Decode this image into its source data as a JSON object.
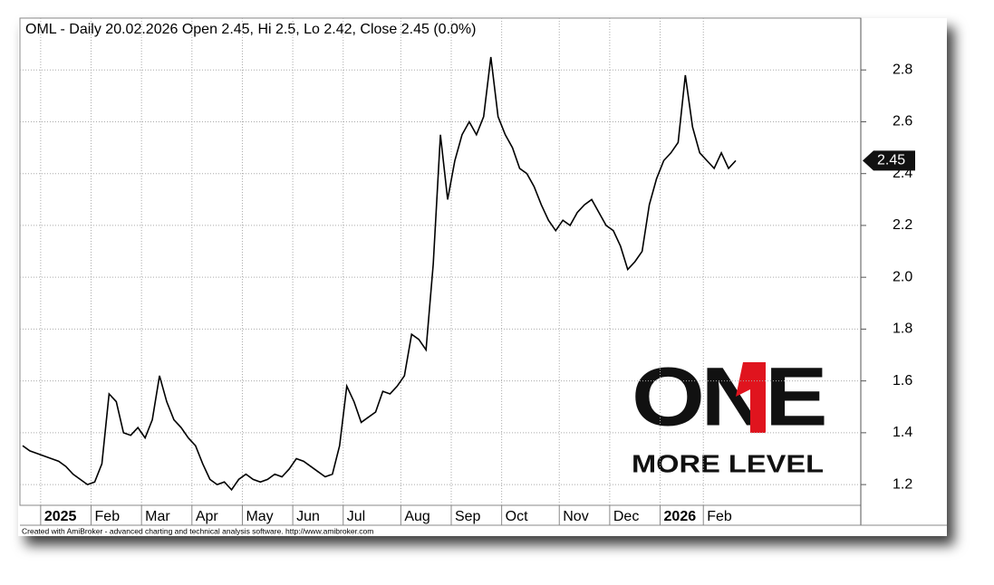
{
  "chart_data": {
    "type": "line",
    "title": "OML - Daily 20.02.2026 Open 2.45, Hi 2.5, Lo 2.42, Close 2.45 (0.0%)",
    "footer": "Created with AmiBroker - advanced charting and technical analysis software. http://www.amibroker.com",
    "logo": {
      "top": "ONE",
      "bottom": "MORE LEVEL"
    },
    "current_price": 2.45,
    "categories": [
      null,
      null,
      null,
      "2025",
      null,
      null,
      null,
      null,
      null,
      null,
      "Feb",
      null,
      null,
      null,
      null,
      null,
      null,
      "Mar",
      null,
      null,
      null,
      null,
      null,
      null,
      "Apr",
      null,
      null,
      null,
      null,
      null,
      null,
      "May",
      null,
      null,
      null,
      null,
      null,
      null,
      "Jun",
      null,
      null,
      null,
      null,
      null,
      null,
      "Jul",
      null,
      null,
      null,
      null,
      null,
      null,
      null,
      "Aug",
      null,
      null,
      null,
      null,
      null,
      null,
      "Sep",
      null,
      null,
      null,
      null,
      null,
      null,
      "Oct",
      null,
      null,
      null,
      null,
      null,
      null,
      null,
      "Nov",
      null,
      null,
      null,
      null,
      null,
      null,
      "Dec",
      null,
      null,
      null,
      null,
      null,
      null,
      "2026",
      null,
      null,
      null,
      null,
      null,
      "Feb",
      null,
      null,
      null,
      null
    ],
    "series": [
      {
        "name": "OML",
        "color": "#000000",
        "values": [
          1.35,
          1.33,
          1.32,
          1.31,
          1.3,
          1.29,
          1.27,
          1.24,
          1.22,
          1.2,
          1.21,
          1.28,
          1.55,
          1.52,
          1.4,
          1.39,
          1.42,
          1.38,
          1.45,
          1.62,
          1.52,
          1.45,
          1.42,
          1.38,
          1.35,
          1.28,
          1.22,
          1.2,
          1.21,
          1.18,
          1.22,
          1.24,
          1.22,
          1.21,
          1.22,
          1.24,
          1.23,
          1.26,
          1.3,
          1.29,
          1.27,
          1.25,
          1.23,
          1.24,
          1.35,
          1.58,
          1.52,
          1.44,
          1.46,
          1.48,
          1.56,
          1.55,
          1.58,
          1.62,
          1.78,
          1.76,
          1.72,
          2.05,
          2.55,
          2.3,
          2.45,
          2.55,
          2.6,
          2.55,
          2.62,
          2.85,
          2.62,
          2.55,
          2.5,
          2.42,
          2.4,
          2.35,
          2.28,
          2.22,
          2.18,
          2.22,
          2.2,
          2.25,
          2.28,
          2.3,
          2.25,
          2.2,
          2.18,
          2.12,
          2.03,
          2.06,
          2.1,
          2.28,
          2.38,
          2.45,
          2.48,
          2.52,
          2.78,
          2.58,
          2.48,
          2.45,
          2.42,
          2.48,
          2.42,
          2.45
        ]
      }
    ],
    "ylim": [
      1.12,
      3.0
    ],
    "yticks": [
      1.2,
      1.4,
      1.6,
      1.8,
      {
        "value": 2,
        "label": "2.0"
      },
      2.2,
      2.4,
      2.6,
      2.8
    ],
    "grid": true
  }
}
